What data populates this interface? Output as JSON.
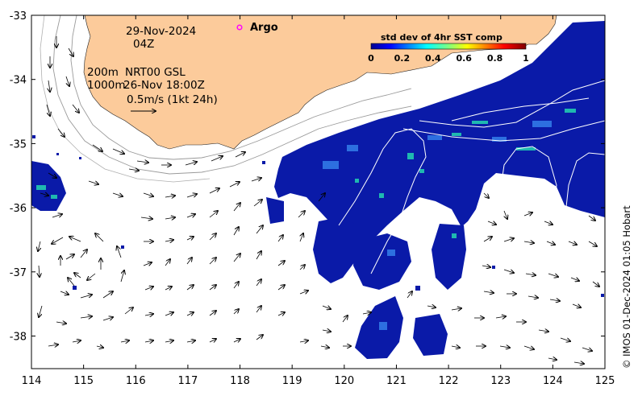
{
  "map": {
    "date_label": "29-Nov-2024",
    "time_label": "04Z",
    "depth_label_1": "200m",
    "depth_label_2": "1000m",
    "product_label": "NRT00 GSL",
    "product_time": "26-Nov 18:00Z",
    "scale_label": "0.5m/s (1kt 24h)",
    "argo_label": "Argo",
    "colorbar_title": "std dev of 4hr SST comp",
    "colorbar_ticks": [
      "0",
      "0.2",
      "0.4",
      "0.6",
      "0.8",
      "1"
    ],
    "credit": "© IMOS 01-Dec-2024 01:05 Hobart",
    "lon_ticks": [
      "114",
      "115",
      "116",
      "117",
      "118",
      "119",
      "120",
      "121",
      "122",
      "123",
      "124",
      "125"
    ],
    "lat_ticks": [
      "-33",
      "-34",
      "-35",
      "-36",
      "-37",
      "-38"
    ],
    "colors": {
      "land": "#FCCB9B",
      "argo_marker": "#FF00FF",
      "sst_low": "#00008F",
      "sst_high": "#800000"
    }
  }
}
